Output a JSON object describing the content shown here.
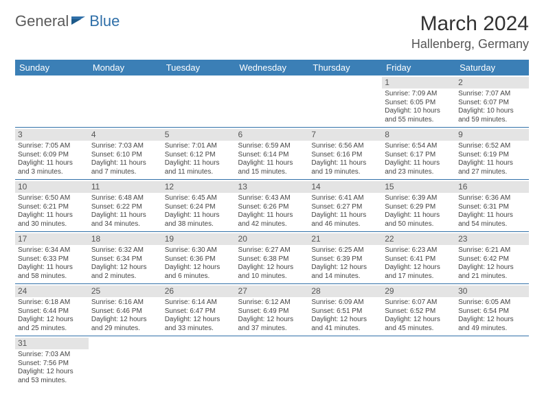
{
  "logo": {
    "text1": "General",
    "text2": "Blue"
  },
  "title": "March 2024",
  "location": "Hallenberg, Germany",
  "colors": {
    "header_bg": "#3b7fb6",
    "header_text": "#ffffff",
    "daynum_bg": "#e4e4e4",
    "rule": "#2f6fa8",
    "logo_gray": "#5a5a5a",
    "logo_blue": "#2f6fa8"
  },
  "weekdays": [
    "Sunday",
    "Monday",
    "Tuesday",
    "Wednesday",
    "Thursday",
    "Friday",
    "Saturday"
  ],
  "weeks": [
    [
      null,
      null,
      null,
      null,
      null,
      {
        "n": "1",
        "sunrise": "Sunrise: 7:09 AM",
        "sunset": "Sunset: 6:05 PM",
        "day1": "Daylight: 10 hours",
        "day2": "and 55 minutes."
      },
      {
        "n": "2",
        "sunrise": "Sunrise: 7:07 AM",
        "sunset": "Sunset: 6:07 PM",
        "day1": "Daylight: 10 hours",
        "day2": "and 59 minutes."
      }
    ],
    [
      {
        "n": "3",
        "sunrise": "Sunrise: 7:05 AM",
        "sunset": "Sunset: 6:09 PM",
        "day1": "Daylight: 11 hours",
        "day2": "and 3 minutes."
      },
      {
        "n": "4",
        "sunrise": "Sunrise: 7:03 AM",
        "sunset": "Sunset: 6:10 PM",
        "day1": "Daylight: 11 hours",
        "day2": "and 7 minutes."
      },
      {
        "n": "5",
        "sunrise": "Sunrise: 7:01 AM",
        "sunset": "Sunset: 6:12 PM",
        "day1": "Daylight: 11 hours",
        "day2": "and 11 minutes."
      },
      {
        "n": "6",
        "sunrise": "Sunrise: 6:59 AM",
        "sunset": "Sunset: 6:14 PM",
        "day1": "Daylight: 11 hours",
        "day2": "and 15 minutes."
      },
      {
        "n": "7",
        "sunrise": "Sunrise: 6:56 AM",
        "sunset": "Sunset: 6:16 PM",
        "day1": "Daylight: 11 hours",
        "day2": "and 19 minutes."
      },
      {
        "n": "8",
        "sunrise": "Sunrise: 6:54 AM",
        "sunset": "Sunset: 6:17 PM",
        "day1": "Daylight: 11 hours",
        "day2": "and 23 minutes."
      },
      {
        "n": "9",
        "sunrise": "Sunrise: 6:52 AM",
        "sunset": "Sunset: 6:19 PM",
        "day1": "Daylight: 11 hours",
        "day2": "and 27 minutes."
      }
    ],
    [
      {
        "n": "10",
        "sunrise": "Sunrise: 6:50 AM",
        "sunset": "Sunset: 6:21 PM",
        "day1": "Daylight: 11 hours",
        "day2": "and 30 minutes."
      },
      {
        "n": "11",
        "sunrise": "Sunrise: 6:48 AM",
        "sunset": "Sunset: 6:22 PM",
        "day1": "Daylight: 11 hours",
        "day2": "and 34 minutes."
      },
      {
        "n": "12",
        "sunrise": "Sunrise: 6:45 AM",
        "sunset": "Sunset: 6:24 PM",
        "day1": "Daylight: 11 hours",
        "day2": "and 38 minutes."
      },
      {
        "n": "13",
        "sunrise": "Sunrise: 6:43 AM",
        "sunset": "Sunset: 6:26 PM",
        "day1": "Daylight: 11 hours",
        "day2": "and 42 minutes."
      },
      {
        "n": "14",
        "sunrise": "Sunrise: 6:41 AM",
        "sunset": "Sunset: 6:27 PM",
        "day1": "Daylight: 11 hours",
        "day2": "and 46 minutes."
      },
      {
        "n": "15",
        "sunrise": "Sunrise: 6:39 AM",
        "sunset": "Sunset: 6:29 PM",
        "day1": "Daylight: 11 hours",
        "day2": "and 50 minutes."
      },
      {
        "n": "16",
        "sunrise": "Sunrise: 6:36 AM",
        "sunset": "Sunset: 6:31 PM",
        "day1": "Daylight: 11 hours",
        "day2": "and 54 minutes."
      }
    ],
    [
      {
        "n": "17",
        "sunrise": "Sunrise: 6:34 AM",
        "sunset": "Sunset: 6:33 PM",
        "day1": "Daylight: 11 hours",
        "day2": "and 58 minutes."
      },
      {
        "n": "18",
        "sunrise": "Sunrise: 6:32 AM",
        "sunset": "Sunset: 6:34 PM",
        "day1": "Daylight: 12 hours",
        "day2": "and 2 minutes."
      },
      {
        "n": "19",
        "sunrise": "Sunrise: 6:30 AM",
        "sunset": "Sunset: 6:36 PM",
        "day1": "Daylight: 12 hours",
        "day2": "and 6 minutes."
      },
      {
        "n": "20",
        "sunrise": "Sunrise: 6:27 AM",
        "sunset": "Sunset: 6:38 PM",
        "day1": "Daylight: 12 hours",
        "day2": "and 10 minutes."
      },
      {
        "n": "21",
        "sunrise": "Sunrise: 6:25 AM",
        "sunset": "Sunset: 6:39 PM",
        "day1": "Daylight: 12 hours",
        "day2": "and 14 minutes."
      },
      {
        "n": "22",
        "sunrise": "Sunrise: 6:23 AM",
        "sunset": "Sunset: 6:41 PM",
        "day1": "Daylight: 12 hours",
        "day2": "and 17 minutes."
      },
      {
        "n": "23",
        "sunrise": "Sunrise: 6:21 AM",
        "sunset": "Sunset: 6:42 PM",
        "day1": "Daylight: 12 hours",
        "day2": "and 21 minutes."
      }
    ],
    [
      {
        "n": "24",
        "sunrise": "Sunrise: 6:18 AM",
        "sunset": "Sunset: 6:44 PM",
        "day1": "Daylight: 12 hours",
        "day2": "and 25 minutes."
      },
      {
        "n": "25",
        "sunrise": "Sunrise: 6:16 AM",
        "sunset": "Sunset: 6:46 PM",
        "day1": "Daylight: 12 hours",
        "day2": "and 29 minutes."
      },
      {
        "n": "26",
        "sunrise": "Sunrise: 6:14 AM",
        "sunset": "Sunset: 6:47 PM",
        "day1": "Daylight: 12 hours",
        "day2": "and 33 minutes."
      },
      {
        "n": "27",
        "sunrise": "Sunrise: 6:12 AM",
        "sunset": "Sunset: 6:49 PM",
        "day1": "Daylight: 12 hours",
        "day2": "and 37 minutes."
      },
      {
        "n": "28",
        "sunrise": "Sunrise: 6:09 AM",
        "sunset": "Sunset: 6:51 PM",
        "day1": "Daylight: 12 hours",
        "day2": "and 41 minutes."
      },
      {
        "n": "29",
        "sunrise": "Sunrise: 6:07 AM",
        "sunset": "Sunset: 6:52 PM",
        "day1": "Daylight: 12 hours",
        "day2": "and 45 minutes."
      },
      {
        "n": "30",
        "sunrise": "Sunrise: 6:05 AM",
        "sunset": "Sunset: 6:54 PM",
        "day1": "Daylight: 12 hours",
        "day2": "and 49 minutes."
      }
    ],
    [
      {
        "n": "31",
        "sunrise": "Sunrise: 7:03 AM",
        "sunset": "Sunset: 7:56 PM",
        "day1": "Daylight: 12 hours",
        "day2": "and 53 minutes."
      },
      null,
      null,
      null,
      null,
      null,
      null
    ]
  ]
}
